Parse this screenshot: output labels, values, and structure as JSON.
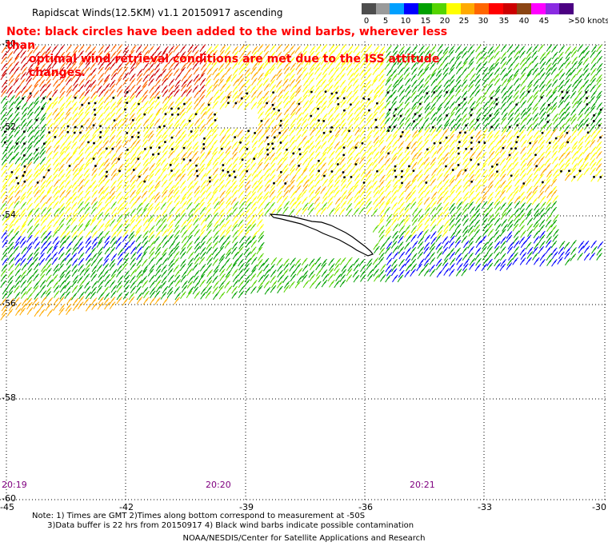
{
  "header": {
    "title": "Rapidscat Winds(12.5KM) v1.1 20150917 ascending"
  },
  "legend": {
    "unit": "knots",
    "labels": [
      "0",
      "5",
      "10",
      "15",
      "20",
      "25",
      "30",
      "35",
      "40",
      "45",
      ">50 knots"
    ],
    "colors": [
      "#4d4d4d",
      "#9a9a9a",
      "#00a0ff",
      "#0000ff",
      "#00a000",
      "#55d400",
      "#ffff00",
      "#ffaa00",
      "#ff6600",
      "#ff0000",
      "#cc0000",
      "#8b4513",
      "#ff00ff",
      "#8a2be2",
      "#4b0082"
    ]
  },
  "note": {
    "line1": "Note: black circles have been added to the wind barbs, wherever less than",
    "line2": "optimal wind retrieval conditions are met due to the ISS attitude changes."
  },
  "map": {
    "latitude_labels": [
      "-50",
      "-52",
      "-54",
      "-56",
      "-58",
      "-60"
    ],
    "longitude_labels": [
      "-45",
      "-42",
      "-39",
      "-36",
      "-33",
      "-30"
    ],
    "time_labels": [
      "20:19",
      "20:20",
      "20:21"
    ]
  },
  "footer": {
    "notes_line1": "Note: 1) Times are GMT 2)Times along bottom correspond to measurement at -50S",
    "notes_line2": "3)Data buffer is 22 hrs from 20150917 4) Black wind barbs indicate possible contamination",
    "credit": "NOAA/NESDIS/Center for Satellite Applications and Research"
  }
}
